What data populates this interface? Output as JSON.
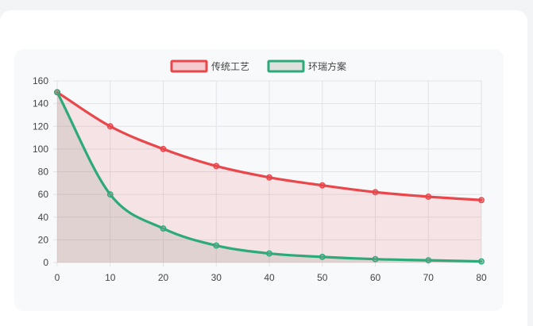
{
  "chart_data": {
    "type": "line",
    "title": "",
    "xlabel": "",
    "ylabel": "",
    "x": [
      0,
      10,
      20,
      30,
      40,
      50,
      60,
      70,
      80
    ],
    "xlim": [
      0,
      80
    ],
    "ylim": [
      0,
      160
    ],
    "yticks": [
      0,
      20,
      40,
      60,
      80,
      100,
      120,
      140,
      160
    ],
    "grid": true,
    "legend_position": "top-center",
    "series": [
      {
        "name": "传统工艺",
        "color": "#e8474b",
        "fill": "rgba(232,71,75,0.12)",
        "values": [
          150,
          120,
          100,
          85,
          75,
          68,
          62,
          58,
          55
        ]
      },
      {
        "name": "环瑞方案",
        "color": "#2daa7a",
        "fill": "rgba(150,150,140,0.22)",
        "values": [
          150,
          60,
          30,
          15,
          8,
          5,
          3,
          2,
          1
        ]
      }
    ]
  }
}
